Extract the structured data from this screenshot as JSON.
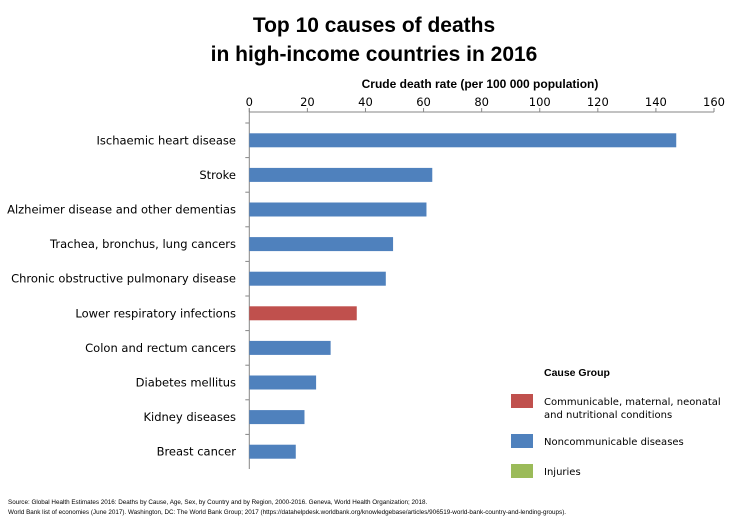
{
  "chart_data": {
    "type": "bar",
    "orientation": "horizontal",
    "title": [
      "Top 10 causes of deaths",
      "in high-income countries in 2016"
    ],
    "xlabel": "Crude death rate (per 100 000 population)",
    "xlim": [
      0,
      160
    ],
    "xticks": [
      0,
      20,
      40,
      60,
      80,
      100,
      120,
      140,
      160
    ],
    "axis_position": "top",
    "grid": false,
    "categories": [
      "Ischaemic heart disease",
      "Stroke",
      "Alzheimer disease and other dementias",
      "Trachea, bronchus, lung cancers",
      "Chronic obstructive pulmonary disease",
      "Lower respiratory infections",
      "Colon and rectum cancers",
      "Diabetes mellitus",
      "Kidney diseases",
      "Breast cancer"
    ],
    "values": [
      147,
      63,
      61,
      49.5,
      47,
      37,
      28,
      23,
      19,
      16
    ],
    "groups": [
      1,
      1,
      1,
      1,
      1,
      0,
      1,
      1,
      1,
      1
    ],
    "legend": {
      "title": "Cause Group",
      "placement": "bottom-right",
      "entries": [
        {
          "label": [
            "Communicable, maternal, neonatal",
            "and nutritional conditions"
          ],
          "color": "#c0504d"
        },
        {
          "label": [
            "Noncommunicable diseases"
          ],
          "color": "#4f81bd"
        },
        {
          "label": [
            "Injuries"
          ],
          "color": "#9bbb59"
        }
      ]
    }
  },
  "source": [
    "Source: Global Health Estimates 2016: Deaths by Cause, Age, Sex, by Country and by Region, 2000-2016. Geneva, World Health Organization; 2018.",
    "World Bank list of economies (June 2017). Washington, DC: The World Bank Group; 2017 (https://datahelpdesk.worldbank.org/knowledgebase/articles/906519-world-bank-country-and-lending-groups)."
  ]
}
